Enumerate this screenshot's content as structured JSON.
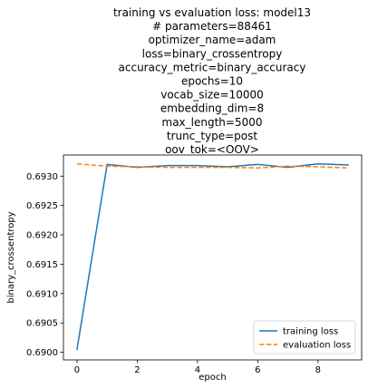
{
  "chart_data": {
    "type": "line",
    "title_lines": [
      "training vs evaluation loss: model13",
      "# parameters=88461",
      "optimizer_name=adam",
      "loss=binary_crossentropy",
      "accuracy_metric=binary_accuracy",
      "epochs=10",
      "vocab_size=10000",
      "embedding_dim=8",
      "max_length=5000",
      "trunc_type=post",
      "oov_tok=<OOV>"
    ],
    "xlabel": "epoch",
    "ylabel": "binary_crossentropy",
    "xlim": [
      -0.45,
      9.45
    ],
    "ylim": [
      0.68987,
      0.69336
    ],
    "xticks": [
      0,
      2,
      4,
      6,
      8
    ],
    "xtick_labels": [
      "0",
      "2",
      "4",
      "6",
      "8"
    ],
    "yticks": [
      0.69,
      0.6905,
      0.691,
      0.6915,
      0.692,
      0.6925,
      0.693
    ],
    "ytick_labels": [
      "0.6900",
      "0.6905",
      "0.6910",
      "0.6915",
      "0.6920",
      "0.6925",
      "0.6930"
    ],
    "grid": false,
    "legend_position": "lower-right",
    "x": [
      0,
      1,
      2,
      3,
      4,
      5,
      6,
      7,
      8,
      9
    ],
    "series": [
      {
        "name": "training loss",
        "color": "#1f77b4",
        "linestyle": "solid",
        "values": [
          0.69005,
          0.6932,
          0.69315,
          0.69318,
          0.69318,
          0.69316,
          0.6932,
          0.69315,
          0.69321,
          0.69319
        ]
      },
      {
        "name": "evaluation loss",
        "color": "#ff7f0e",
        "linestyle": "dashed",
        "values": [
          0.69321,
          0.69317,
          0.69316,
          0.69315,
          0.69315,
          0.69315,
          0.69314,
          0.69317,
          0.69316,
          0.69314
        ]
      }
    ]
  }
}
